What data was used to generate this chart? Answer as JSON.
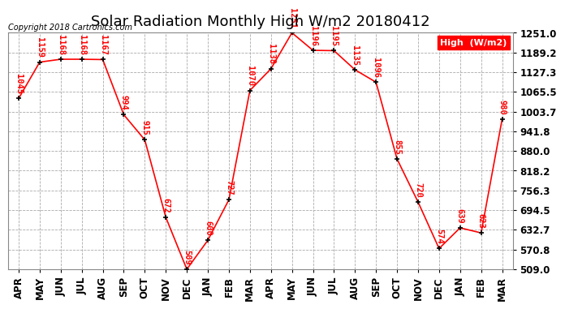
{
  "title": "Solar Radiation Monthly High W/m2 20180412",
  "copyright": "Copyright 2018 Cartronics.com",
  "legend_label": "High  (W/m2)",
  "months": [
    "APR",
    "MAY",
    "JUN",
    "JUL",
    "AUG",
    "SEP",
    "OCT",
    "NOV",
    "DEC",
    "JAN",
    "FEB",
    "MAR",
    "APR",
    "MAY",
    "JUN",
    "JUL",
    "AUG",
    "SEP",
    "OCT",
    "NOV",
    "DEC",
    "JAN",
    "FEB",
    "MAR"
  ],
  "values": [
    1045,
    1159,
    1168,
    1168,
    1167,
    994,
    915,
    672,
    509,
    600,
    727,
    1070,
    1138,
    1251,
    1196,
    1195,
    1135,
    1096,
    855,
    720,
    574,
    639,
    623,
    980
  ],
  "ylim": [
    509.0,
    1251.0
  ],
  "yticks": [
    509.0,
    570.8,
    632.7,
    694.5,
    756.3,
    818.2,
    880.0,
    941.8,
    1003.7,
    1065.5,
    1127.3,
    1189.2,
    1251.0
  ],
  "line_color": "red",
  "marker_color": "black",
  "label_color": "red",
  "bg_color": "white",
  "grid_color": "#aaaaaa",
  "title_fontsize": 13,
  "label_fontsize": 7.5,
  "tick_fontsize": 8.5,
  "legend_bg": "red",
  "legend_fg": "white"
}
